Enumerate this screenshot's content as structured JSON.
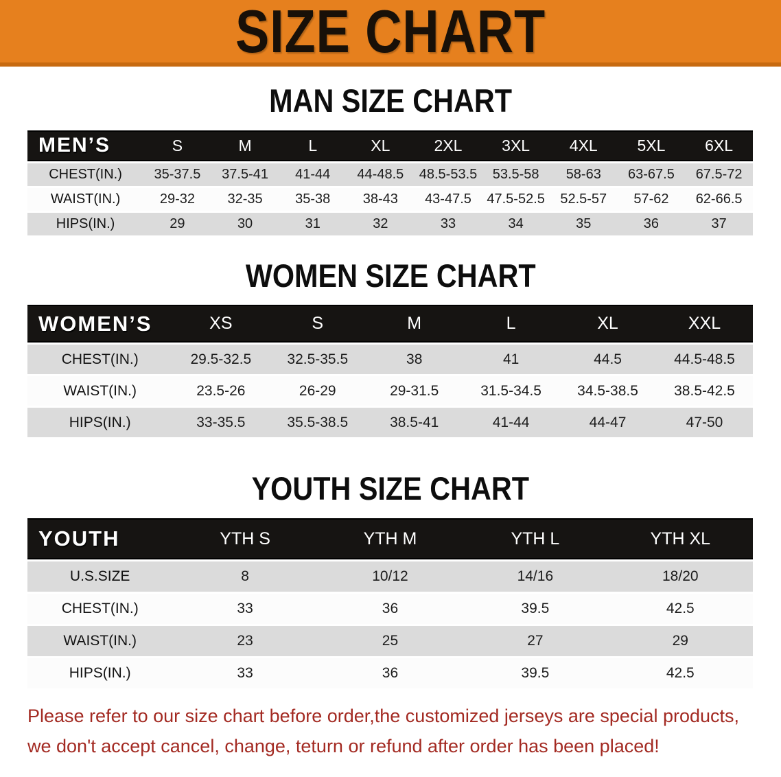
{
  "banner": {
    "title": "SIZE CHART"
  },
  "colors": {
    "banner_bg": "#E6801E",
    "banner_edge": "#C76A10",
    "header_bg": "#161412",
    "row_gray": "#DBDBDB",
    "row_white": "#FCFCFC",
    "note_red": "#A32A22"
  },
  "sections": [
    {
      "id": "men",
      "heading": "MAN SIZE CHART",
      "table": {
        "corner_label": "MEN’S",
        "columns": [
          "S",
          "M",
          "L",
          "XL",
          "2XL",
          "3XL",
          "4XL",
          "5XL",
          "6XL"
        ],
        "rows": [
          {
            "label": "CHEST(IN.)",
            "values": [
              "35-37.5",
              "37.5-41",
              "41-44",
              "44-48.5",
              "48.5-53.5",
              "53.5-58",
              "58-63",
              "63-67.5",
              "67.5-72"
            ]
          },
          {
            "label": "WAIST(IN.)",
            "values": [
              "29-32",
              "32-35",
              "35-38",
              "38-43",
              "43-47.5",
              "47.5-52.5",
              "52.5-57",
              "57-62",
              "62-66.5"
            ]
          },
          {
            "label": "HIPS(IN.)",
            "values": [
              "29",
              "30",
              "31",
              "32",
              "33",
              "34",
              "35",
              "36",
              "37"
            ]
          }
        ]
      }
    },
    {
      "id": "women",
      "heading": "WOMEN SIZE CHART",
      "table": {
        "corner_label": "WOMEN’S",
        "columns": [
          "XS",
          "S",
          "M",
          "L",
          "XL",
          "XXL"
        ],
        "rows": [
          {
            "label": "CHEST(IN.)",
            "values": [
              "29.5-32.5",
              "32.5-35.5",
              "38",
              "41",
              "44.5",
              "44.5-48.5"
            ]
          },
          {
            "label": "WAIST(IN.)",
            "values": [
              "23.5-26",
              "26-29",
              "29-31.5",
              "31.5-34.5",
              "34.5-38.5",
              "38.5-42.5"
            ]
          },
          {
            "label": "HIPS(IN.)",
            "values": [
              "33-35.5",
              "35.5-38.5",
              "38.5-41",
              "41-44",
              "44-47",
              "47-50"
            ]
          }
        ]
      }
    },
    {
      "id": "youth",
      "heading": "YOUTH SIZE CHART",
      "table": {
        "corner_label": "YOUTH",
        "columns": [
          "YTH S",
          "YTH M",
          "YTH L",
          "YTH XL"
        ],
        "rows": [
          {
            "label": "U.S.SIZE",
            "values": [
              "8",
              "10/12",
              "14/16",
              "18/20"
            ]
          },
          {
            "label": "CHEST(IN.)",
            "values": [
              "33",
              "36",
              "39.5",
              "42.5"
            ]
          },
          {
            "label": "WAIST(IN.)",
            "values": [
              "23",
              "25",
              "27",
              "29"
            ]
          },
          {
            "label": "HIPS(IN.)",
            "values": [
              "33",
              "36",
              "39.5",
              "42.5"
            ]
          }
        ]
      }
    }
  ],
  "note": {
    "line1": "Please refer to our size chart before order,the customized jerseys are special products,",
    "line2": "we don't accept cancel, change, teturn or refund after order has been placed!"
  }
}
